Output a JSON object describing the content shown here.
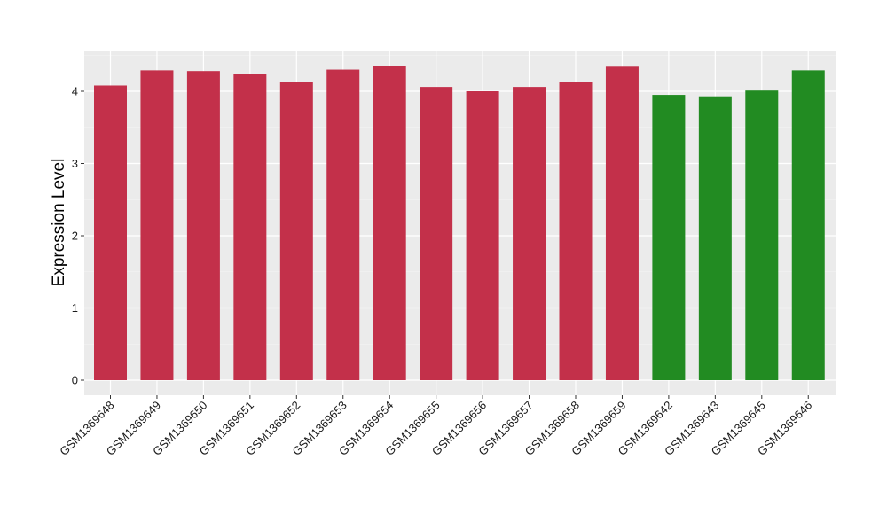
{
  "chart_data": {
    "type": "bar",
    "title": "",
    "xlabel": "",
    "ylabel": "Expression Level",
    "ylim": [
      0,
      4.5
    ],
    "yticks": [
      0,
      1,
      2,
      3,
      4
    ],
    "grid": true,
    "background": "#EBEBEB",
    "categories": [
      "GSM1369648",
      "GSM1369649",
      "GSM1369650",
      "GSM1369651",
      "GSM1369652",
      "GSM1369653",
      "GSM1369654",
      "GSM1369655",
      "GSM1369656",
      "GSM1369657",
      "GSM1369658",
      "GSM1369659",
      "GSM1369642",
      "GSM1369643",
      "GSM1369645",
      "GSM1369646"
    ],
    "values": [
      4.08,
      4.29,
      4.28,
      4.24,
      4.13,
      4.3,
      4.35,
      4.06,
      4.0,
      4.06,
      4.13,
      4.34,
      3.95,
      3.93,
      4.01,
      4.29
    ],
    "colors": [
      "#C3304A",
      "#C3304A",
      "#C3304A",
      "#C3304A",
      "#C3304A",
      "#C3304A",
      "#C3304A",
      "#C3304A",
      "#C3304A",
      "#C3304A",
      "#C3304A",
      "#C3304A",
      "#228B22",
      "#228B22",
      "#228B22",
      "#228B22"
    ]
  }
}
